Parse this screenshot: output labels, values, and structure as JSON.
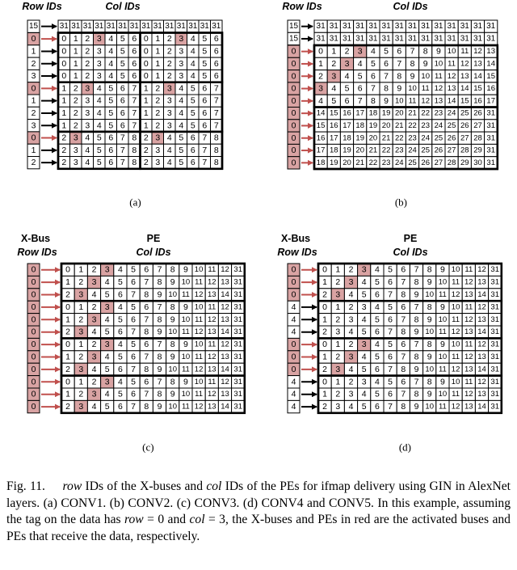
{
  "highlight_color": "#d9a3a3",
  "arrow_color_active": "#c0504d",
  "arrow_color_idle": "#000000",
  "panels": [
    {
      "id": "a",
      "sub_label": "(a)",
      "header_left": "Row IDs",
      "header_right": "Col IDs",
      "top_row_ids": [
        "15"
      ],
      "top_header_cells": [
        "31",
        "31",
        "31",
        "31",
        "31",
        "31",
        "31",
        "31",
        "31",
        "31",
        "31",
        "31",
        "31",
        "31"
      ],
      "row_ids": [
        "0",
        "1",
        "2",
        "3",
        "0",
        "1",
        "2",
        "3",
        "0",
        "1",
        "2"
      ],
      "highlight_rows": [
        0,
        4,
        8
      ],
      "group_breaks": [
        4,
        8
      ],
      "col_group_break": 7,
      "rows": [
        [
          "0",
          "1",
          "2",
          "3",
          "4",
          "5",
          "6",
          "0",
          "1",
          "2",
          "3",
          "4",
          "5",
          "6"
        ],
        [
          "0",
          "1",
          "2",
          "3",
          "4",
          "5",
          "6",
          "0",
          "1",
          "2",
          "3",
          "4",
          "5",
          "6"
        ],
        [
          "0",
          "1",
          "2",
          "3",
          "4",
          "5",
          "6",
          "0",
          "1",
          "2",
          "3",
          "4",
          "5",
          "6"
        ],
        [
          "0",
          "1",
          "2",
          "3",
          "4",
          "5",
          "6",
          "0",
          "1",
          "2",
          "3",
          "4",
          "5",
          "6"
        ],
        [
          "1",
          "2",
          "3",
          "4",
          "5",
          "6",
          "7",
          "1",
          "2",
          "3",
          "4",
          "5",
          "6",
          "7"
        ],
        [
          "1",
          "2",
          "3",
          "4",
          "5",
          "6",
          "7",
          "1",
          "2",
          "3",
          "4",
          "5",
          "6",
          "7"
        ],
        [
          "1",
          "2",
          "3",
          "4",
          "5",
          "6",
          "7",
          "1",
          "2",
          "3",
          "4",
          "5",
          "6",
          "7"
        ],
        [
          "1",
          "2",
          "3",
          "4",
          "5",
          "6",
          "7",
          "1",
          "2",
          "3",
          "4",
          "5",
          "6",
          "7"
        ],
        [
          "2",
          "3",
          "4",
          "5",
          "6",
          "7",
          "8",
          "2",
          "3",
          "4",
          "5",
          "6",
          "7",
          "8"
        ],
        [
          "2",
          "3",
          "4",
          "5",
          "6",
          "7",
          "8",
          "2",
          "3",
          "4",
          "5",
          "6",
          "7",
          "8"
        ],
        [
          "2",
          "3",
          "4",
          "5",
          "6",
          "7",
          "8",
          "2",
          "3",
          "4",
          "5",
          "6",
          "7",
          "8"
        ]
      ]
    },
    {
      "id": "b",
      "sub_label": "(b)",
      "header_left": "Row IDs",
      "header_right": "Col IDs",
      "top_row_ids": [
        "15",
        "15"
      ],
      "top_header_cells": [
        "31",
        "31",
        "31",
        "31",
        "31",
        "31",
        "31",
        "31",
        "31",
        "31",
        "31",
        "31",
        "31",
        "31"
      ],
      "row_ids": [
        "0",
        "0",
        "0",
        "0",
        "0",
        "0",
        "0",
        "0",
        "0",
        "0"
      ],
      "highlight_rows": [
        0,
        1,
        2,
        3,
        4,
        5,
        6,
        7,
        8,
        9
      ],
      "group_breaks": [
        5
      ],
      "col_group_break": -1,
      "rows": [
        [
          "0",
          "1",
          "2",
          "3",
          "4",
          "5",
          "6",
          "7",
          "8",
          "9",
          "10",
          "11",
          "12",
          "13"
        ],
        [
          "1",
          "2",
          "3",
          "4",
          "5",
          "6",
          "7",
          "8",
          "9",
          "10",
          "11",
          "12",
          "13",
          "14"
        ],
        [
          "2",
          "3",
          "4",
          "5",
          "6",
          "7",
          "8",
          "9",
          "10",
          "11",
          "12",
          "13",
          "14",
          "15"
        ],
        [
          "3",
          "4",
          "5",
          "6",
          "7",
          "8",
          "9",
          "10",
          "11",
          "12",
          "13",
          "14",
          "15",
          "16"
        ],
        [
          "4",
          "5",
          "6",
          "7",
          "8",
          "9",
          "10",
          "11",
          "12",
          "13",
          "14",
          "15",
          "16",
          "17"
        ],
        [
          "14",
          "15",
          "16",
          "17",
          "18",
          "19",
          "20",
          "21",
          "22",
          "23",
          "24",
          "25",
          "26",
          "31"
        ],
        [
          "15",
          "16",
          "17",
          "18",
          "19",
          "20",
          "21",
          "22",
          "23",
          "24",
          "25",
          "26",
          "27",
          "31"
        ],
        [
          "16",
          "17",
          "18",
          "19",
          "20",
          "21",
          "22",
          "23",
          "24",
          "25",
          "26",
          "27",
          "28",
          "31"
        ],
        [
          "17",
          "18",
          "19",
          "20",
          "21",
          "22",
          "23",
          "24",
          "25",
          "26",
          "27",
          "28",
          "29",
          "31"
        ],
        [
          "18",
          "19",
          "20",
          "21",
          "22",
          "23",
          "24",
          "25",
          "26",
          "27",
          "28",
          "29",
          "30",
          "31"
        ]
      ]
    },
    {
      "id": "c",
      "sub_label": "(c)",
      "header_top_left": "X-Bus",
      "header_left": "Row IDs",
      "header_top_right": "PE",
      "header_right": "Col IDs",
      "top_row_ids": [],
      "top_header_cells": [],
      "row_ids": [
        "0",
        "0",
        "0",
        "0",
        "0",
        "0",
        "0",
        "0",
        "0",
        "0",
        "0",
        "0"
      ],
      "highlight_rows": [
        0,
        1,
        2,
        3,
        4,
        5,
        6,
        7,
        8,
        9,
        10,
        11
      ],
      "group_breaks": [
        3,
        6,
        9
      ],
      "col_group_break": -1,
      "rows": [
        [
          "0",
          "1",
          "2",
          "3",
          "4",
          "5",
          "6",
          "7",
          "8",
          "9",
          "10",
          "11",
          "12",
          "31"
        ],
        [
          "1",
          "2",
          "3",
          "4",
          "5",
          "6",
          "7",
          "8",
          "9",
          "10",
          "11",
          "12",
          "13",
          "31"
        ],
        [
          "2",
          "3",
          "4",
          "5",
          "6",
          "7",
          "8",
          "9",
          "10",
          "11",
          "12",
          "13",
          "14",
          "31"
        ],
        [
          "0",
          "1",
          "2",
          "3",
          "4",
          "5",
          "6",
          "7",
          "8",
          "9",
          "10",
          "11",
          "12",
          "31"
        ],
        [
          "1",
          "2",
          "3",
          "4",
          "5",
          "6",
          "7",
          "8",
          "9",
          "10",
          "11",
          "12",
          "13",
          "31"
        ],
        [
          "2",
          "3",
          "4",
          "5",
          "6",
          "7",
          "8",
          "9",
          "10",
          "11",
          "12",
          "13",
          "14",
          "31"
        ],
        [
          "0",
          "1",
          "2",
          "3",
          "4",
          "5",
          "6",
          "7",
          "8",
          "9",
          "10",
          "11",
          "12",
          "31"
        ],
        [
          "1",
          "2",
          "3",
          "4",
          "5",
          "6",
          "7",
          "8",
          "9",
          "10",
          "11",
          "12",
          "13",
          "31"
        ],
        [
          "2",
          "3",
          "4",
          "5",
          "6",
          "7",
          "8",
          "9",
          "10",
          "11",
          "12",
          "13",
          "14",
          "31"
        ],
        [
          "0",
          "1",
          "2",
          "3",
          "4",
          "5",
          "6",
          "7",
          "8",
          "9",
          "10",
          "11",
          "12",
          "31"
        ],
        [
          "1",
          "2",
          "3",
          "4",
          "5",
          "6",
          "7",
          "8",
          "9",
          "10",
          "11",
          "12",
          "13",
          "31"
        ],
        [
          "2",
          "3",
          "4",
          "5",
          "6",
          "7",
          "8",
          "9",
          "10",
          "11",
          "12",
          "13",
          "14",
          "31"
        ]
      ]
    },
    {
      "id": "d",
      "sub_label": "(d)",
      "header_top_left": "X-Bus",
      "header_left": "Row IDs",
      "header_top_right": "PE",
      "header_right": "Col IDs",
      "top_row_ids": [],
      "top_header_cells": [],
      "row_ids": [
        "0",
        "0",
        "0",
        "4",
        "4",
        "4",
        "0",
        "0",
        "0",
        "4",
        "4",
        "4"
      ],
      "highlight_rows": [
        0,
        1,
        2,
        6,
        7,
        8
      ],
      "group_breaks": [
        3,
        6,
        9
      ],
      "col_group_break": -1,
      "rows": [
        [
          "0",
          "1",
          "2",
          "3",
          "4",
          "5",
          "6",
          "7",
          "8",
          "9",
          "10",
          "11",
          "12",
          "31"
        ],
        [
          "1",
          "2",
          "3",
          "4",
          "5",
          "6",
          "7",
          "8",
          "9",
          "10",
          "11",
          "12",
          "13",
          "31"
        ],
        [
          "2",
          "3",
          "4",
          "5",
          "6",
          "7",
          "8",
          "9",
          "10",
          "11",
          "12",
          "13",
          "14",
          "31"
        ],
        [
          "0",
          "1",
          "2",
          "3",
          "4",
          "5",
          "6",
          "7",
          "8",
          "9",
          "10",
          "11",
          "12",
          "31"
        ],
        [
          "1",
          "2",
          "3",
          "4",
          "5",
          "6",
          "7",
          "8",
          "9",
          "10",
          "11",
          "12",
          "13",
          "31"
        ],
        [
          "2",
          "3",
          "4",
          "5",
          "6",
          "7",
          "8",
          "9",
          "10",
          "11",
          "12",
          "13",
          "14",
          "31"
        ],
        [
          "0",
          "1",
          "2",
          "3",
          "4",
          "5",
          "6",
          "7",
          "8",
          "9",
          "10",
          "11",
          "12",
          "31"
        ],
        [
          "1",
          "2",
          "3",
          "4",
          "5",
          "6",
          "7",
          "8",
          "9",
          "10",
          "11",
          "12",
          "13",
          "31"
        ],
        [
          "2",
          "3",
          "4",
          "5",
          "6",
          "7",
          "8",
          "9",
          "10",
          "11",
          "12",
          "13",
          "14",
          "31"
        ],
        [
          "0",
          "1",
          "2",
          "3",
          "4",
          "5",
          "6",
          "7",
          "8",
          "9",
          "10",
          "11",
          "12",
          "31"
        ],
        [
          "1",
          "2",
          "3",
          "4",
          "5",
          "6",
          "7",
          "8",
          "9",
          "10",
          "11",
          "12",
          "13",
          "31"
        ],
        [
          "2",
          "3",
          "4",
          "5",
          "6",
          "7",
          "8",
          "9",
          "10",
          "11",
          "12",
          "13",
          "14",
          "31"
        ]
      ]
    }
  ],
  "caption": {
    "fig_label": "Fig. 11.",
    "row_word": "row",
    "t1": " IDs of the X-buses and ",
    "col_word": "col",
    "t2": " IDs of the PEs for ifmap delivery using GIN in AlexNet layers. (a) CONV1. (b) CONV2. (c) CONV3. (d) CONV4 and CONV5. In this example, assuming the tag on the data has ",
    "row_eq": "row",
    "eq0": " = 0 and ",
    "col_eq": "col",
    "eq3": " = 3, the X-buses and PEs in red are the activated buses and PEs that receive the data, respectively."
  }
}
